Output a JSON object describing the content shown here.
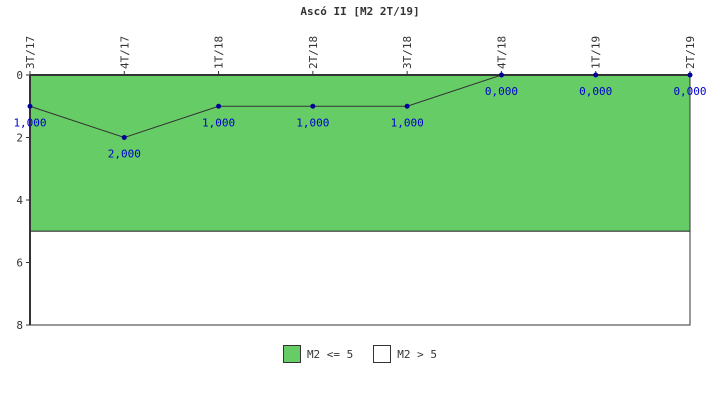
{
  "chart_data": {
    "type": "line",
    "title": "Ascó II [M2 2T/19]",
    "categories": [
      "3T/17",
      "4T/17",
      "1T/18",
      "2T/18",
      "3T/18",
      "4T/18",
      "1T/19",
      "2T/19"
    ],
    "series": [
      {
        "values": [
          1,
          2,
          1,
          1,
          1,
          0,
          0,
          0
        ],
        "labels": [
          "1,000",
          "2,000",
          "1,000",
          "1,000",
          "1,000",
          "0,000",
          "0,000",
          "0,000"
        ]
      }
    ],
    "yticks": [
      "0",
      "2",
      "4",
      "6",
      "8"
    ],
    "ylim": [
      0,
      8
    ],
    "y_inverted": true,
    "bands": [
      {
        "name": "M2 <= 5",
        "from": 0,
        "to": 5,
        "color": "#66cc66"
      },
      {
        "name": "M2 > 5",
        "from": 5,
        "to": 8,
        "color": "#ffffff"
      }
    ],
    "line_color": "#333333",
    "marker_color": "#000099",
    "label_color": "#0000cc",
    "legend_placement": "bottom"
  }
}
